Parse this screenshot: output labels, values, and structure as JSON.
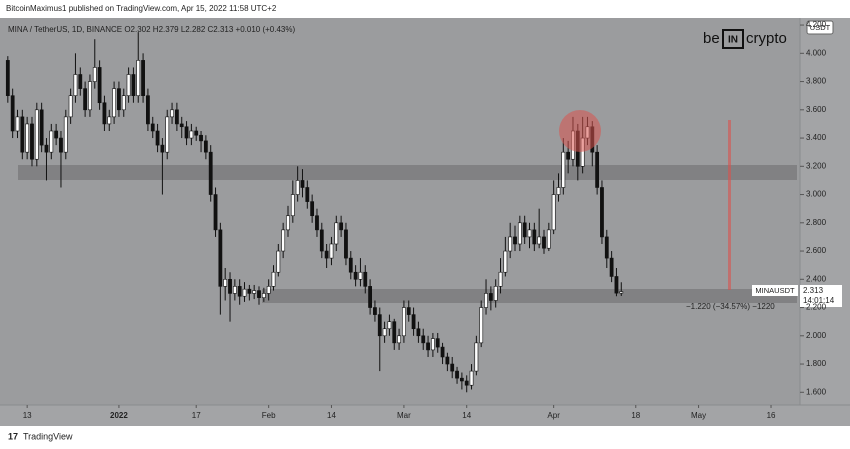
{
  "chart_data": {
    "type": "candlestick",
    "publisher": "BitcoinMaximus1 published on TradingView.com, Apr 15, 2022 11:58 UTC+2",
    "title": "MINA / TetherUS, 1D, BINANCE  O2.302  H2.379  L2.282  C2.313  +0.010 (+0.43%)",
    "logo": [
      "be",
      "IN",
      "crypto"
    ],
    "currency": "USDT",
    "symbol_tag": "MINAUSDT",
    "last_price": "2.313",
    "countdown": "14:01:14",
    "measure": "−1.220 (−34.57%) −1220",
    "footer": "TradingView",
    "up_color": "#ffffff",
    "down_color": "#111111",
    "xlim": [
      -1,
      164
    ],
    "xticks": [
      {
        "value": 4,
        "label": "13"
      },
      {
        "value": 23,
        "label": "2022"
      },
      {
        "value": 39,
        "label": "17"
      },
      {
        "value": 54,
        "label": "Feb"
      },
      {
        "value": 67,
        "label": "14"
      },
      {
        "value": 82,
        "label": "Mar"
      },
      {
        "value": 95,
        "label": "14"
      },
      {
        "value": 113,
        "label": "Apr"
      },
      {
        "value": 130,
        "label": "18"
      },
      {
        "value": 143,
        "label": "May"
      },
      {
        "value": 158,
        "label": "16"
      }
    ],
    "ylim": [
      1.51,
      4.25
    ],
    "yticks": [
      {
        "value": 1.6,
        "label": "1.600"
      },
      {
        "value": 1.8,
        "label": "1.800"
      },
      {
        "value": 2,
        "label": "2.000"
      },
      {
        "value": 2.2,
        "label": "2.200"
      },
      {
        "value": 2.4,
        "label": "2.400"
      },
      {
        "value": 2.6,
        "label": "2.600"
      },
      {
        "value": 2.8,
        "label": "2.800"
      },
      {
        "value": 3,
        "label": "3.000"
      },
      {
        "value": 3.2,
        "label": "3.200"
      },
      {
        "value": 3.4,
        "label": "3.400"
      },
      {
        "value": 3.6,
        "label": "3.600"
      },
      {
        "value": 3.8,
        "label": "3.800"
      },
      {
        "value": 4,
        "label": "4.000"
      },
      {
        "value": 4.2,
        "label": "4.200"
      }
    ],
    "open": [
      3.95,
      3.7,
      3.45,
      3.55,
      3.3,
      3.5,
      3.25,
      3.6,
      3.35,
      3.3,
      3.45,
      3.4,
      3.3,
      3.55,
      3.7,
      3.85,
      3.75,
      3.6,
      3.8,
      3.9,
      3.65,
      3.5,
      3.55,
      3.75,
      3.6,
      3.7,
      3.85,
      3.7,
      3.95,
      3.7,
      3.5,
      3.45,
      3.35,
      3.3,
      3.55,
      3.6,
      3.5,
      3.48,
      3.4,
      3.45,
      3.42,
      3.38,
      3.3,
      3.0,
      2.75,
      2.35,
      2.4,
      2.3,
      2.35,
      2.28,
      2.33,
      2.3,
      2.32,
      2.27,
      2.3,
      2.35,
      2.45,
      2.6,
      2.75,
      2.85,
      3.0,
      3.1,
      3.05,
      2.95,
      2.85,
      2.75,
      2.6,
      2.55,
      2.65,
      2.8,
      2.75,
      2.55,
      2.45,
      2.4,
      2.45,
      2.35,
      2.2,
      2.15,
      2.0,
      2.05,
      2.1,
      1.95,
      2.0,
      2.2,
      2.15,
      2.05,
      2.0,
      1.95,
      1.9,
      1.98,
      1.92,
      1.85,
      1.8,
      1.75,
      1.7,
      1.68,
      1.65,
      1.75,
      1.95,
      2.2,
      2.3,
      2.25,
      2.35,
      2.45,
      2.6,
      2.7,
      2.65,
      2.8,
      2.7,
      2.75,
      2.65,
      2.7,
      2.62,
      2.75,
      3.0,
      3.05,
      3.3,
      3.25,
      3.45,
      3.2,
      3.4,
      3.48,
      3.3,
      3.05,
      2.7,
      2.55,
      2.42,
      2.302
    ],
    "high": [
      3.98,
      3.75,
      3.6,
      3.6,
      3.55,
      3.55,
      3.65,
      3.65,
      3.4,
      3.5,
      3.5,
      3.45,
      3.6,
      3.75,
      4.0,
      3.9,
      3.8,
      3.85,
      4.1,
      3.95,
      3.7,
      3.6,
      3.8,
      3.8,
      3.75,
      3.9,
      3.9,
      4.15,
      4.0,
      3.75,
      3.55,
      3.5,
      3.4,
      3.6,
      3.65,
      3.65,
      3.55,
      3.52,
      3.5,
      3.48,
      3.45,
      3.42,
      3.35,
      3.05,
      2.8,
      2.48,
      2.45,
      2.4,
      2.4,
      2.38,
      2.36,
      2.36,
      2.35,
      2.34,
      2.4,
      2.5,
      2.65,
      2.8,
      2.92,
      3.1,
      3.2,
      3.18,
      3.1,
      3.0,
      2.9,
      2.8,
      2.65,
      2.7,
      2.85,
      2.85,
      2.8,
      2.6,
      2.5,
      2.55,
      2.5,
      2.4,
      2.25,
      2.2,
      2.1,
      2.15,
      2.12,
      2.05,
      2.25,
      2.25,
      2.2,
      2.1,
      2.05,
      2.0,
      2.02,
      2.02,
      1.95,
      1.88,
      1.85,
      1.78,
      1.74,
      1.72,
      1.8,
      2.0,
      2.25,
      2.4,
      2.35,
      2.4,
      2.55,
      2.7,
      2.8,
      2.78,
      2.85,
      2.85,
      2.8,
      2.8,
      2.9,
      2.75,
      2.8,
      3.1,
      3.15,
      3.4,
      3.38,
      3.55,
      3.5,
      3.55,
      3.55,
      3.52,
      3.35,
      3.1,
      2.75,
      2.6,
      2.48,
      2.379
    ],
    "low": [
      3.65,
      3.4,
      3.4,
      3.25,
      3.25,
      3.2,
      3.2,
      3.3,
      3.1,
      3.25,
      3.35,
      3.05,
      3.25,
      3.5,
      3.65,
      3.7,
      3.55,
      3.55,
      3.75,
      3.6,
      3.45,
      3.45,
      3.5,
      3.55,
      3.55,
      3.65,
      3.65,
      3.65,
      3.65,
      3.45,
      3.4,
      3.3,
      3.0,
      3.25,
      3.5,
      3.45,
      3.4,
      3.35,
      3.35,
      3.38,
      3.3,
      3.25,
      2.95,
      2.7,
      2.15,
      2.25,
      2.1,
      2.25,
      2.22,
      2.24,
      2.25,
      2.26,
      2.22,
      2.24,
      2.25,
      2.32,
      2.42,
      2.55,
      2.7,
      2.8,
      2.95,
      2.98,
      2.9,
      2.8,
      2.7,
      2.55,
      2.48,
      2.5,
      2.6,
      2.7,
      2.5,
      2.4,
      2.35,
      2.35,
      2.3,
      2.15,
      2.1,
      1.75,
      1.95,
      2.0,
      1.9,
      1.9,
      1.95,
      2.1,
      2.0,
      1.95,
      1.9,
      1.85,
      1.85,
      1.88,
      1.8,
      1.75,
      1.7,
      1.66,
      1.62,
      1.6,
      1.62,
      1.72,
      1.92,
      2.15,
      2.18,
      2.2,
      2.3,
      2.42,
      2.55,
      2.6,
      2.6,
      2.65,
      2.62,
      2.6,
      2.62,
      2.58,
      2.6,
      2.72,
      2.95,
      3.0,
      3.15,
      3.2,
      3.1,
      3.15,
      3.35,
      3.2,
      3.0,
      2.65,
      2.48,
      2.38,
      2.28,
      2.282
    ],
    "close": [
      3.7,
      3.45,
      3.55,
      3.3,
      3.5,
      3.25,
      3.6,
      3.35,
      3.3,
      3.45,
      3.4,
      3.3,
      3.55,
      3.7,
      3.85,
      3.75,
      3.6,
      3.8,
      3.9,
      3.65,
      3.5,
      3.55,
      3.75,
      3.6,
      3.7,
      3.85,
      3.7,
      3.95,
      3.7,
      3.5,
      3.45,
      3.35,
      3.3,
      3.55,
      3.6,
      3.5,
      3.48,
      3.4,
      3.45,
      3.42,
      3.38,
      3.3,
      3.0,
      2.75,
      2.35,
      2.4,
      2.3,
      2.35,
      2.28,
      2.33,
      2.3,
      2.32,
      2.27,
      2.3,
      2.35,
      2.45,
      2.6,
      2.75,
      2.85,
      3.0,
      3.1,
      3.05,
      2.95,
      2.85,
      2.75,
      2.6,
      2.55,
      2.65,
      2.8,
      2.75,
      2.55,
      2.45,
      2.4,
      2.45,
      2.35,
      2.2,
      2.15,
      2.0,
      2.05,
      2.1,
      1.95,
      2.0,
      2.2,
      2.15,
      2.05,
      2.0,
      1.95,
      1.9,
      1.98,
      1.92,
      1.85,
      1.8,
      1.75,
      1.7,
      1.68,
      1.65,
      1.75,
      1.95,
      2.2,
      2.3,
      2.25,
      2.35,
      2.45,
      2.6,
      2.7,
      2.65,
      2.8,
      2.7,
      2.75,
      2.65,
      2.7,
      2.62,
      2.75,
      3.0,
      3.05,
      3.3,
      3.25,
      3.45,
      3.2,
      3.4,
      3.48,
      3.3,
      3.05,
      2.7,
      2.55,
      2.42,
      2.302,
      2.313
    ]
  }
}
